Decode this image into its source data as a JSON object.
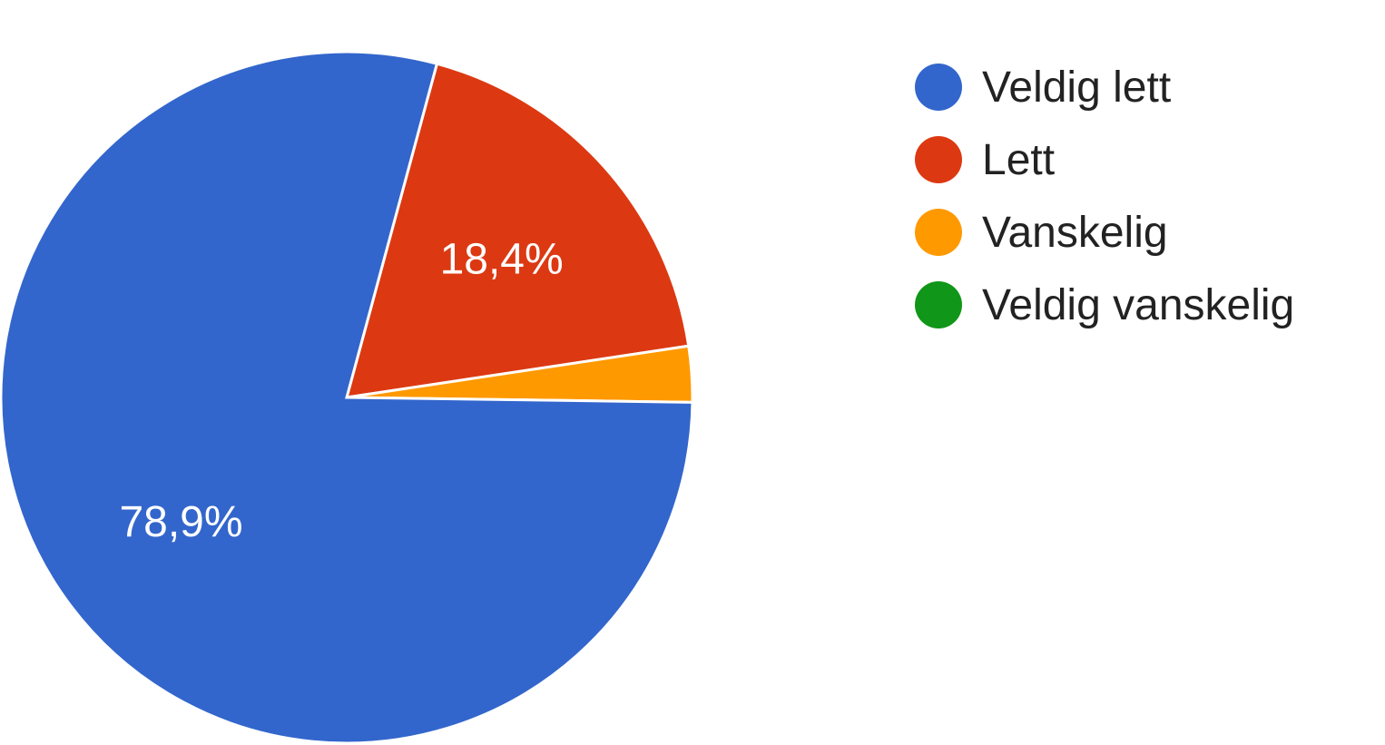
{
  "chart_data": {
    "type": "pie",
    "categories": [
      "Veldig lett",
      "Lett",
      "Vanskelig",
      "Veldig vanskelig"
    ],
    "values": [
      78.9,
      18.4,
      2.6,
      0
    ],
    "data_labels": [
      "78,9%",
      "18,4%",
      "",
      ""
    ],
    "colors": [
      "#3366cc",
      "#dc3912",
      "#ff9900",
      "#109618"
    ],
    "legend_position": "right",
    "title": ""
  }
}
